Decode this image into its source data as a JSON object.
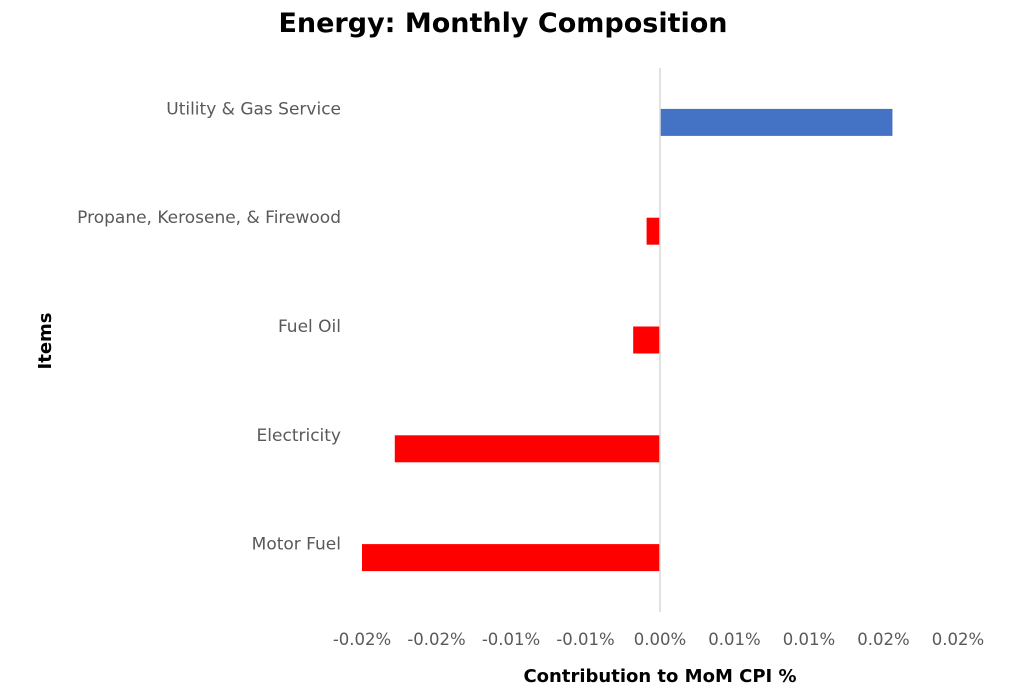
{
  "chart_data": {
    "type": "bar",
    "orientation": "horizontal",
    "title": "Energy: Monthly Composition",
    "xlabel": "Contribution to MoM CPI %",
    "ylabel": "Items",
    "categories": [
      "Utility & Gas Service",
      "Propane, Kerosene, & Firewood",
      "Fuel Oil",
      "Electricity",
      "Motor Fuel"
    ],
    "values": [
      0.0156,
      -0.0009,
      -0.0018,
      -0.0178,
      -0.02
    ],
    "bar_colors": [
      "#4472C4",
      "#FF0000",
      "#FF0000",
      "#FF0000",
      "#FF0000"
    ],
    "xlim": [
      -0.02,
      0.02
    ],
    "xticks": [
      -0.02,
      -0.015,
      -0.01,
      -0.005,
      0.0,
      0.005,
      0.01,
      0.015,
      0.02
    ],
    "xtick_labels": [
      "-0.02%",
      "-0.02%",
      "-0.01%",
      "-0.01%",
      "0.00%",
      "0.01%",
      "0.01%",
      "0.02%",
      "0.02%"
    ],
    "grid": false,
    "legend": "none",
    "axis_line_color": "#D9D9D9"
  }
}
